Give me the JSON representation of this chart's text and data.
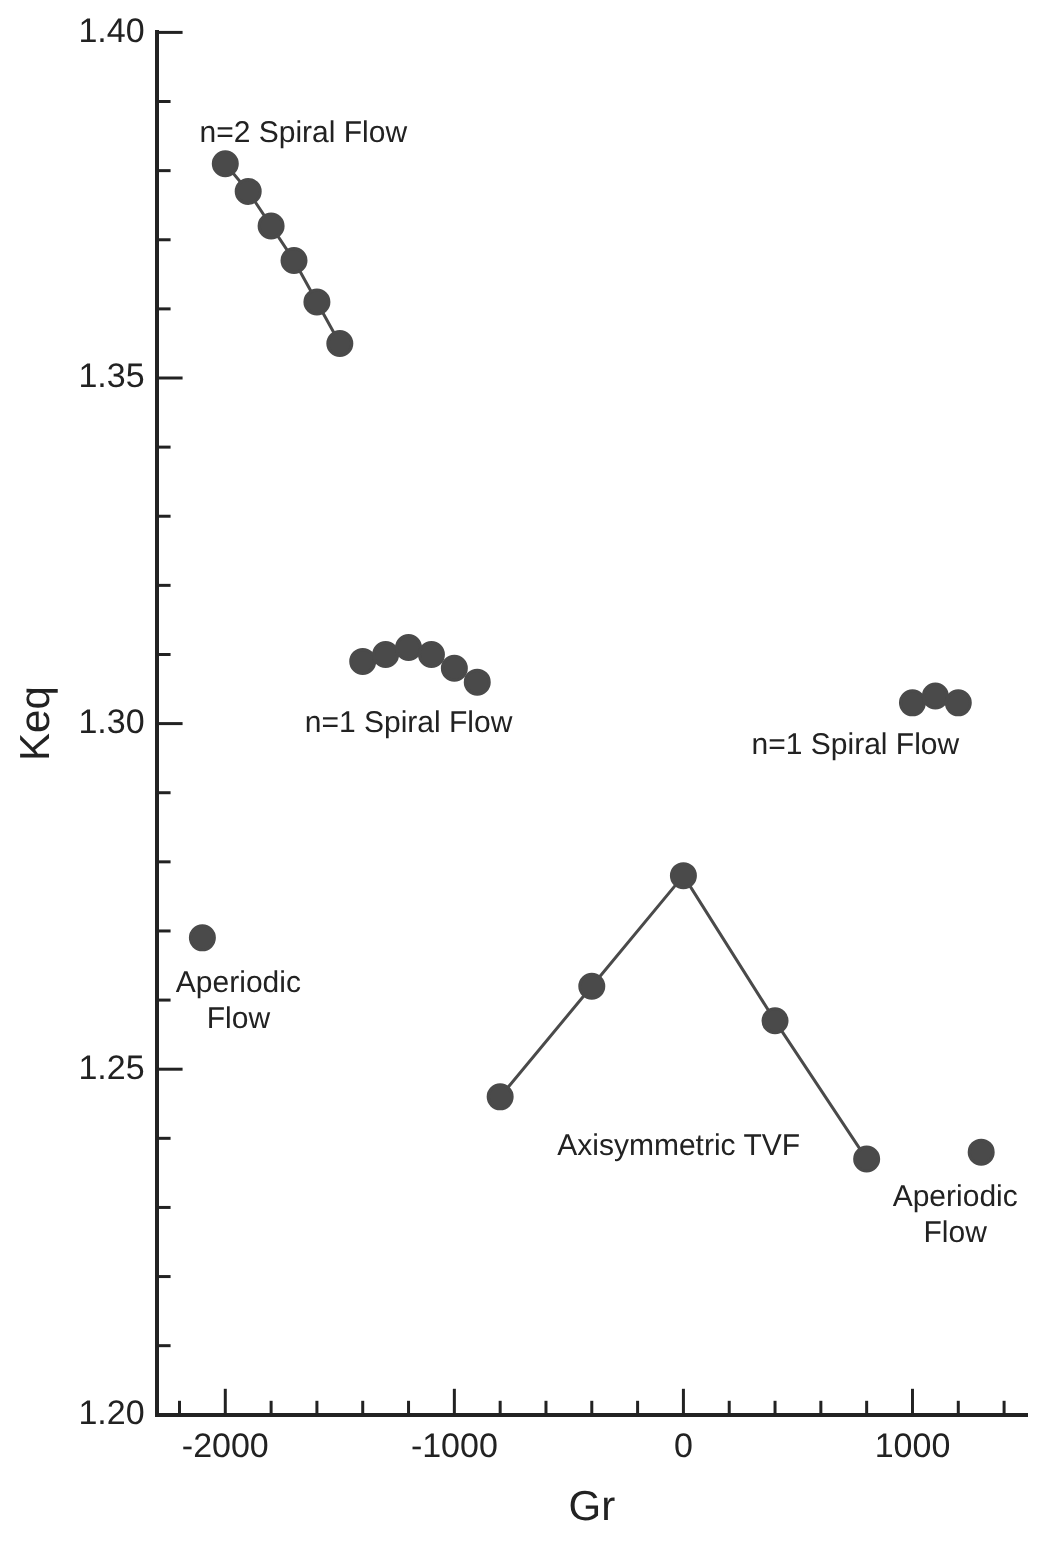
{
  "chart_data": {
    "type": "scatter",
    "xlabel": "Gr",
    "ylabel": "Keq",
    "marker": "circle",
    "xlim": [
      -2300,
      1500
    ],
    "ylim": [
      1.2,
      1.4
    ],
    "xticks": [
      {
        "value": -2200,
        "label": null
      },
      -2000,
      {
        "value": -1800,
        "label": null
      },
      {
        "value": -1600,
        "label": null
      },
      {
        "value": -1400,
        "label": null
      },
      {
        "value": -1200,
        "label": null
      },
      -1000,
      {
        "value": -800,
        "label": null
      },
      {
        "value": -600,
        "label": null
      },
      {
        "value": -400,
        "label": null
      },
      {
        "value": -200,
        "label": null
      },
      0,
      {
        "value": 200,
        "label": null
      },
      {
        "value": 400,
        "label": null
      },
      {
        "value": 600,
        "label": null
      },
      {
        "value": 800,
        "label": null
      },
      1000,
      {
        "value": 1200,
        "label": null
      },
      {
        "value": 1400,
        "label": null
      }
    ],
    "yticks": [
      {
        "value": 1.2,
        "label": "1.20"
      },
      {
        "value": 1.21,
        "label": null
      },
      {
        "value": 1.22,
        "label": null
      },
      {
        "value": 1.23,
        "label": null
      },
      {
        "value": 1.24,
        "label": null
      },
      1.25,
      {
        "value": 1.26,
        "label": null
      },
      {
        "value": 1.27,
        "label": null
      },
      {
        "value": 1.28,
        "label": null
      },
      {
        "value": 1.29,
        "label": null
      },
      {
        "value": 1.3,
        "label": "1.30"
      },
      {
        "value": 1.31,
        "label": null
      },
      {
        "value": 1.32,
        "label": null
      },
      {
        "value": 1.33,
        "label": null
      },
      {
        "value": 1.34,
        "label": null
      },
      1.35,
      {
        "value": 1.36,
        "label": null
      },
      {
        "value": 1.37,
        "label": null
      },
      {
        "value": 1.38,
        "label": null
      },
      {
        "value": 1.39,
        "label": null
      },
      {
        "value": 1.4,
        "label": "1.40"
      }
    ],
    "grid": false,
    "legend": false,
    "series": [
      {
        "type": "line",
        "name": "n=2 Spiral Flow",
        "color": "#4a4a4a",
        "x": [
          -2000,
          -1900,
          -1800,
          -1700,
          -1600,
          -1500
        ],
        "values": [
          1.381,
          1.377,
          1.372,
          1.367,
          1.361,
          1.355
        ]
      },
      {
        "type": "scatter",
        "name": "n=1 Spiral Flow",
        "color": "#4a4a4a",
        "x": [
          -1400,
          -1300,
          -1200,
          -1100,
          -1000,
          -900
        ],
        "values": [
          1.309,
          1.31,
          1.311,
          1.31,
          1.308,
          1.306
        ]
      },
      {
        "type": "scatter",
        "name": "n=1 Spiral Flow",
        "color": "#4a4a4a",
        "x": [
          1000,
          1100,
          1200
        ],
        "values": [
          1.303,
          1.304,
          1.303
        ]
      },
      {
        "type": "line",
        "name": "Axisymmetric TVF",
        "color": "#4a4a4a",
        "x": [
          -800,
          -400,
          0,
          400,
          800
        ],
        "values": [
          1.246,
          1.262,
          1.278,
          1.257,
          1.237
        ]
      },
      {
        "type": "scatter",
        "name": "Aperiodic\nFlow",
        "color": "#4a4a4a",
        "x": [
          -2100
        ],
        "values": [
          1.269
        ]
      },
      {
        "type": "scatter",
        "name": "Aperiodic\nFlow",
        "color": "#4a4a4a",
        "x": [
          1300
        ],
        "values": [
          1.238
        ]
      }
    ]
  }
}
